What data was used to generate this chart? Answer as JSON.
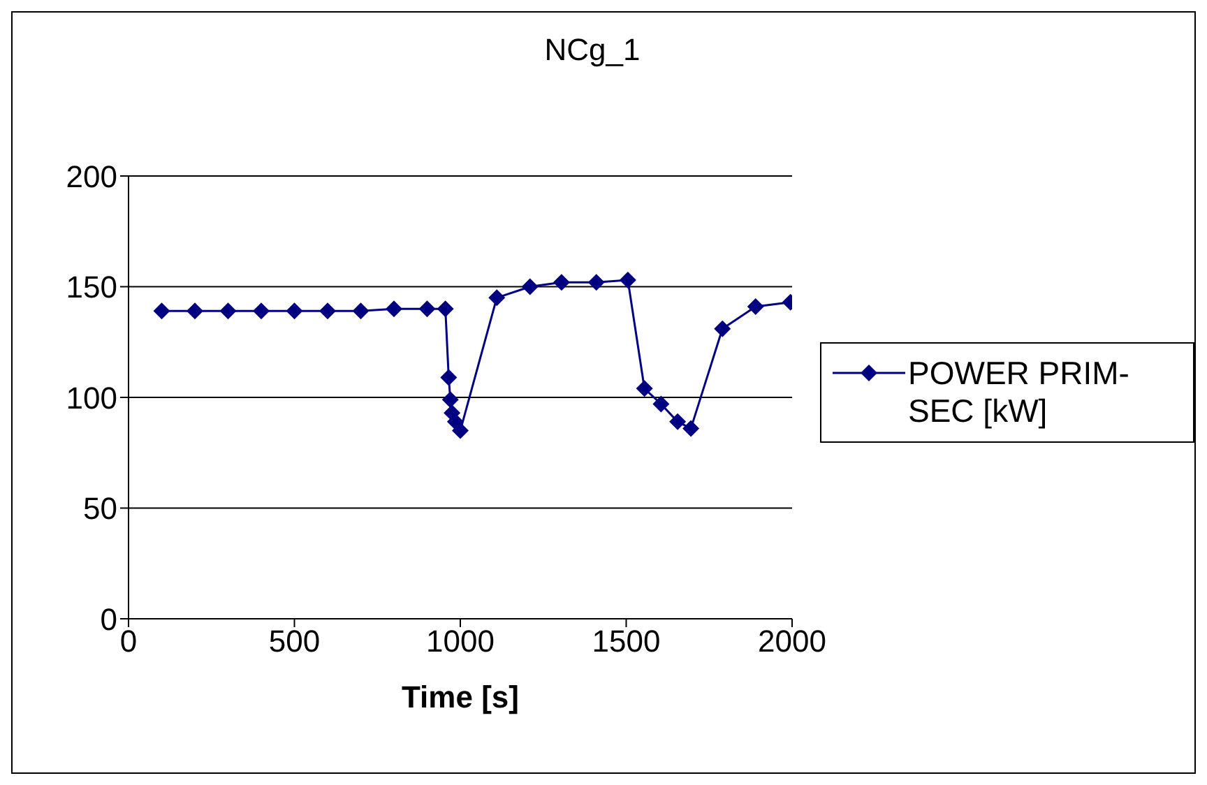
{
  "chart_data": {
    "type": "line",
    "title": "NCg_1",
    "xlabel": "Time [s]",
    "series": [
      {
        "name": "POWER PRIM-SEC [kW]",
        "color": "#000080",
        "x": [
          100,
          200,
          300,
          400,
          500,
          600,
          700,
          800,
          900,
          955,
          965,
          970,
          975,
          985,
          1000,
          1110,
          1210,
          1305,
          1410,
          1505,
          1555,
          1605,
          1655,
          1695,
          1790,
          1890,
          1995
        ],
        "values": [
          139,
          139,
          139,
          139,
          139,
          139,
          139,
          140,
          140,
          140,
          109,
          99,
          93,
          89,
          85,
          145,
          150,
          152,
          152,
          153,
          104,
          97,
          89,
          86,
          131,
          141,
          143
        ]
      }
    ],
    "xlim": [
      0,
      2000
    ],
    "xticks": [
      0,
      500,
      1000,
      1500,
      2000
    ],
    "ylim": [
      0,
      200
    ],
    "yticks": [
      0,
      50,
      100,
      150,
      200
    ],
    "grid": "y",
    "legend": "right",
    "marker": "diamond",
    "line_style": "solid"
  }
}
